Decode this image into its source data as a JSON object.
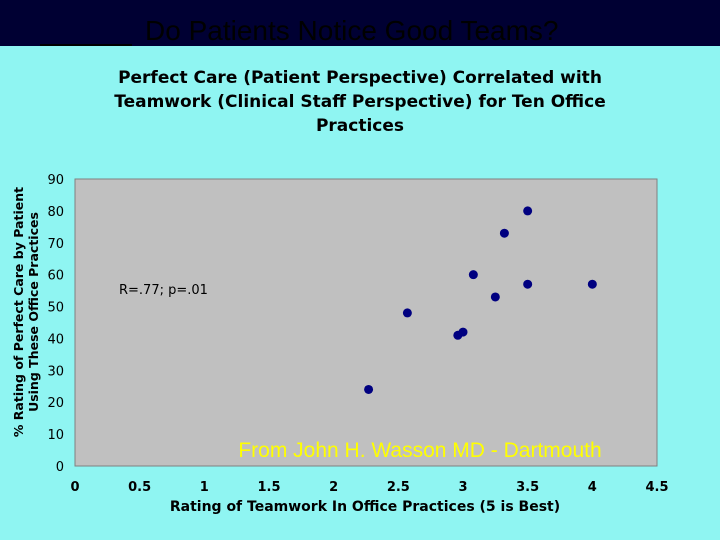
{
  "slide": {
    "title": "Do Patients Notice Good Teams?"
  },
  "chart_data": {
    "type": "scatter",
    "title": "Perfect Care (Patient Perspective) Correlated with Teamwork (Clinical Staff Perspective) for Ten Office Practices",
    "title_lines": [
      "Perfect Care (Patient Perspective) Correlated with",
      "Teamwork (Clinical Staff Perspective) for Ten Office",
      "Practices"
    ],
    "xlabel": "Rating of Teamwork In Office Practices (5 is Best)",
    "ylabel": "% Rating of Perfect Care by Patient Using These Office Practices",
    "ylabel_lines": [
      "% Rating of Perfect Care by Patient",
      "Using These Office Practices"
    ],
    "xlim": [
      0,
      4.5
    ],
    "ylim": [
      0,
      90
    ],
    "x_ticks": [
      "0",
      "0.5",
      "1",
      "1.5",
      "2",
      "2.5",
      "3",
      "3.5",
      "4",
      "4.5"
    ],
    "y_ticks": [
      "0",
      "10",
      "20",
      "30",
      "40",
      "50",
      "60",
      "70",
      "80",
      "90"
    ],
    "grid": false,
    "points": [
      {
        "x": 2.27,
        "y": 24
      },
      {
        "x": 2.57,
        "y": 48
      },
      {
        "x": 2.96,
        "y": 41
      },
      {
        "x": 3.0,
        "y": 42
      },
      {
        "x": 3.08,
        "y": 60
      },
      {
        "x": 3.25,
        "y": 53
      },
      {
        "x": 3.32,
        "y": 73
      },
      {
        "x": 3.5,
        "y": 57
      },
      {
        "x": 3.5,
        "y": 80
      },
      {
        "x": 4.0,
        "y": 57
      }
    ],
    "annotations": {
      "stats": "R=.77; p=.01",
      "source": "From John H. Wasson MD - Dartmouth"
    },
    "colors": {
      "plot_bg": "#c0c0c0",
      "marker": "#000080",
      "source_text": "#ffff00"
    }
  }
}
